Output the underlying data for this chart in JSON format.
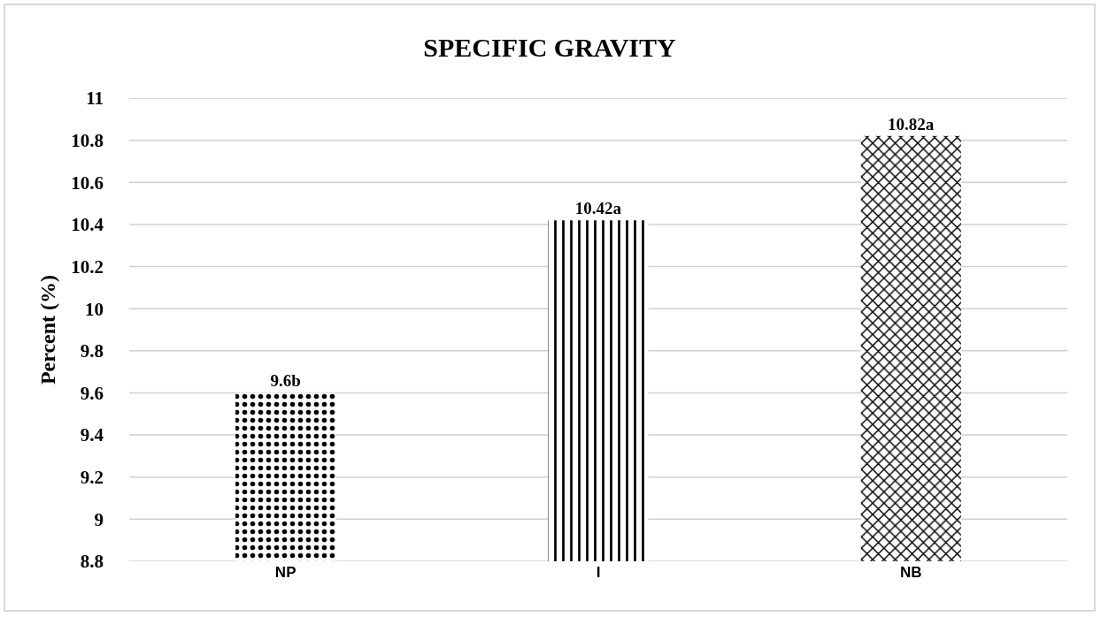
{
  "chart_data": {
    "type": "bar",
    "title": "SPECIFIC GRAVITY",
    "ylabel": "Percent (%)",
    "categories": [
      "NP",
      "I",
      "NB"
    ],
    "values": [
      9.6,
      10.42,
      10.82
    ],
    "value_labels": [
      "9.6b",
      "10.42a",
      "10.82a"
    ],
    "colors": [
      "#000000",
      "#000000",
      "#000000"
    ],
    "ylim": [
      8.8,
      11
    ],
    "yticks": [
      8.8,
      9,
      9.2,
      9.4,
      9.6,
      9.8,
      10,
      10.2,
      10.4,
      10.6,
      10.8,
      11
    ],
    "grid": "y"
  }
}
